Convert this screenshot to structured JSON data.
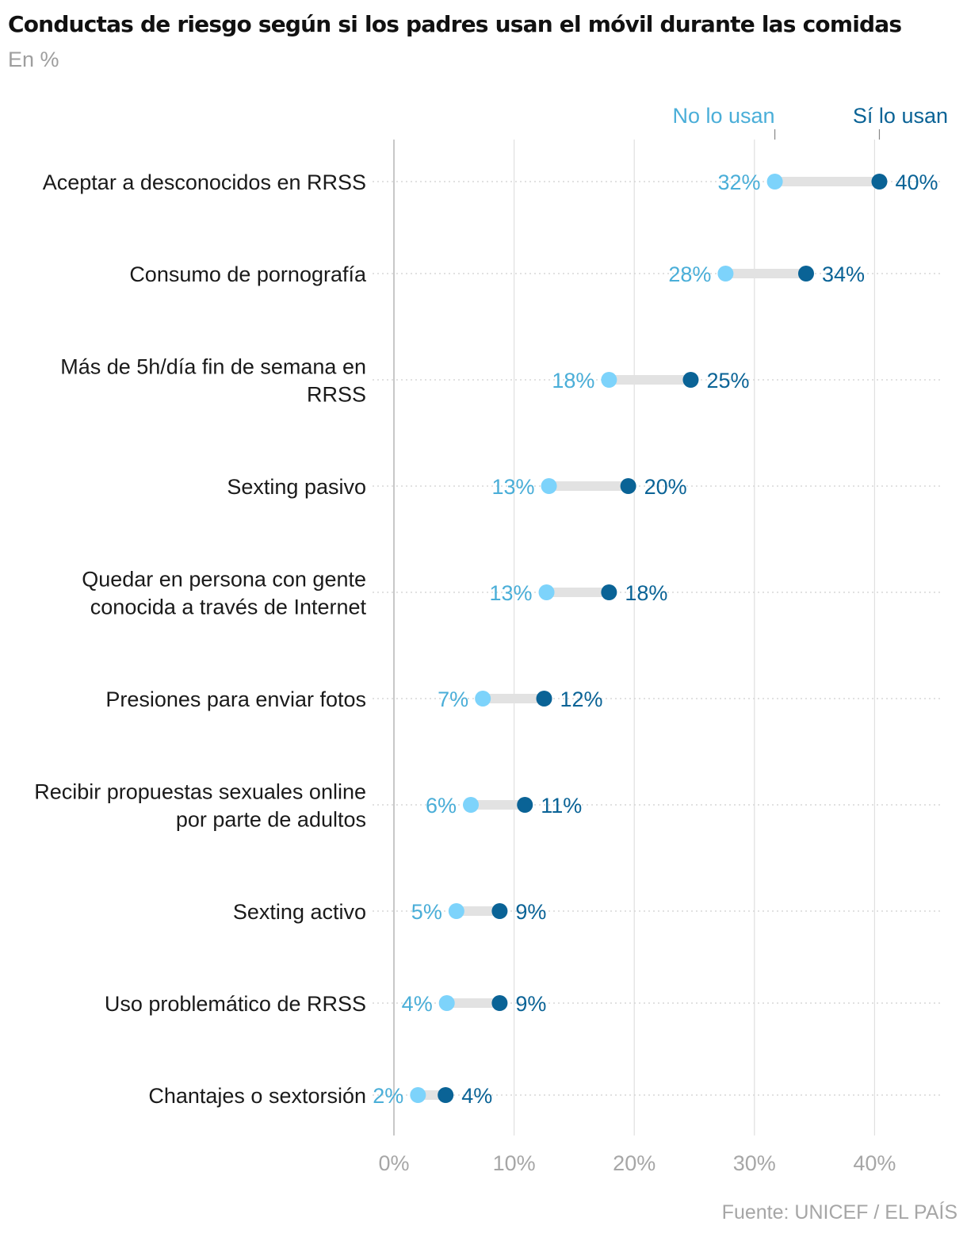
{
  "title": "Conductas de riesgo según si los padres usan el móvil durante las comidas",
  "subtitle": "En %",
  "source": "Fuente: UNICEF / EL PAÍS",
  "colors": {
    "no_lo_usan": "#7dd3fb",
    "no_lo_usan_text": "#4aaed8",
    "si_lo_usan": "#0a6396",
    "connector": "#e2e2e2",
    "grid": "#e0e0e0",
    "axis": "#b5b5b5"
  },
  "chart_data": {
    "type": "dumbbell",
    "xlim": [
      0,
      45
    ],
    "xticks": [
      0,
      10,
      20,
      30,
      40
    ],
    "xtick_labels": [
      "0%",
      "10%",
      "20%",
      "30%",
      "40%"
    ],
    "grid": "vertical",
    "legend": "top-right",
    "categories": [
      [
        "Aceptar a desconocidos en RRSS"
      ],
      [
        "Consumo de pornografía"
      ],
      [
        "Más de 5h/día fin de semana en",
        "RRSS"
      ],
      [
        "Sexting pasivo"
      ],
      [
        "Quedar en persona con gente",
        "conocida a través de Internet"
      ],
      [
        "Presiones para enviar fotos"
      ],
      [
        "Recibir propuestas sexuales online",
        "por parte de adultos"
      ],
      [
        "Sexting activo"
      ],
      [
        "Uso problemático de RRSS"
      ],
      [
        "Chantajes o sextorsión"
      ]
    ],
    "series": [
      {
        "name": "No lo usan",
        "values": [
          31.7,
          27.6,
          17.9,
          12.9,
          12.7,
          7.4,
          6.4,
          5.2,
          4.4,
          2.0
        ],
        "labels": [
          "32%",
          "28%",
          "18%",
          "13%",
          "13%",
          "7%",
          "6%",
          "5%",
          "4%",
          "2%"
        ]
      },
      {
        "name": "Sí lo usan",
        "values": [
          40.4,
          34.3,
          24.7,
          19.5,
          17.9,
          12.5,
          10.9,
          8.8,
          8.8,
          4.3
        ],
        "labels": [
          "40%",
          "34%",
          "25%",
          "20%",
          "18%",
          "12%",
          "11%",
          "9%",
          "9%",
          "4%"
        ]
      }
    ]
  }
}
